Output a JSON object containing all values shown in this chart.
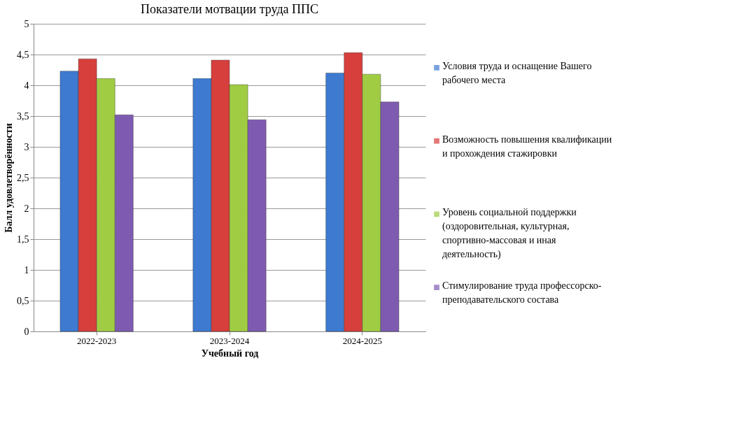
{
  "chart_data": {
    "type": "bar",
    "title": "Показатели мотвации труда ППС",
    "xlabel": "Учебный год",
    "ylabel": "Балл удовлетворённости",
    "categories": [
      "2022-2023",
      "2023-2024",
      "2024-2025"
    ],
    "series": [
      {
        "name": "Условия труда и оснащение Вашего рабочего места",
        "color": "#3d7ad0",
        "values": [
          4.23,
          4.11,
          4.2
        ]
      },
      {
        "name": "Возможность повышения квалификации и прохождения стажировки",
        "color": "#d63f3c",
        "values": [
          4.43,
          4.41,
          4.53
        ]
      },
      {
        "name": "Уровень социальной поддержки (оздоровительная, культурная, спортивно-массовая и иная деятельность)",
        "color": "#a0cc44",
        "values": [
          4.11,
          4.01,
          4.18
        ]
      },
      {
        "name": "Стимулирование труда профессорско-преподавательского состава",
        "color": "#7e5bb0",
        "values": [
          3.52,
          3.44,
          3.73
        ]
      }
    ],
    "ylim": [
      0,
      5
    ],
    "yticks": [
      0,
      {
        "value": 0.5,
        "label": "0,5"
      },
      1,
      {
        "value": 1.5,
        "label": "1,5"
      },
      2,
      {
        "value": 2.5,
        "label": "2,5"
      },
      3,
      {
        "value": 3.5,
        "label": "3,5"
      },
      4,
      {
        "value": 4.5,
        "label": "4,5"
      },
      5
    ],
    "grid": "y",
    "legend": "right"
  }
}
